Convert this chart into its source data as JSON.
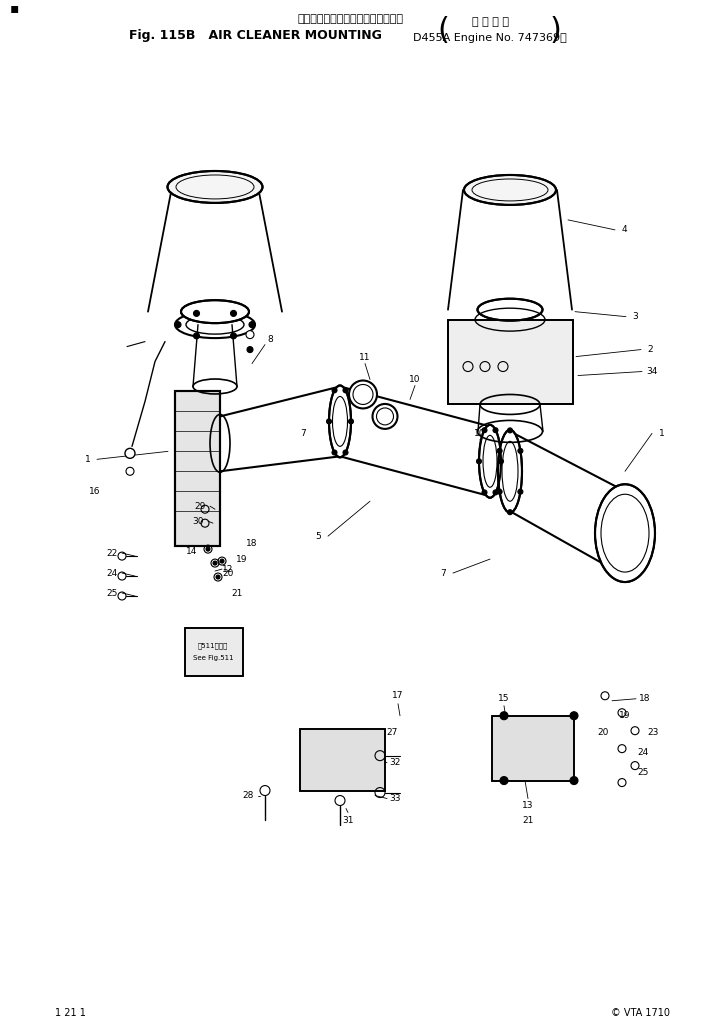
{
  "title_japanese": "エアー　クリーナ　マウンティング",
  "title_english": "Fig. 115B   AIR CLEANER MOUNTING",
  "subtitle": "(D455A Engine No. 747369∼)",
  "subtitle_japanese": "適用号機",
  "page_num": "1 21 1",
  "copyright": "© VTA 1710",
  "bg_color": "#ffffff",
  "line_color": "#000000",
  "fig_width": 7.01,
  "fig_height": 10.28,
  "dpi": 100
}
